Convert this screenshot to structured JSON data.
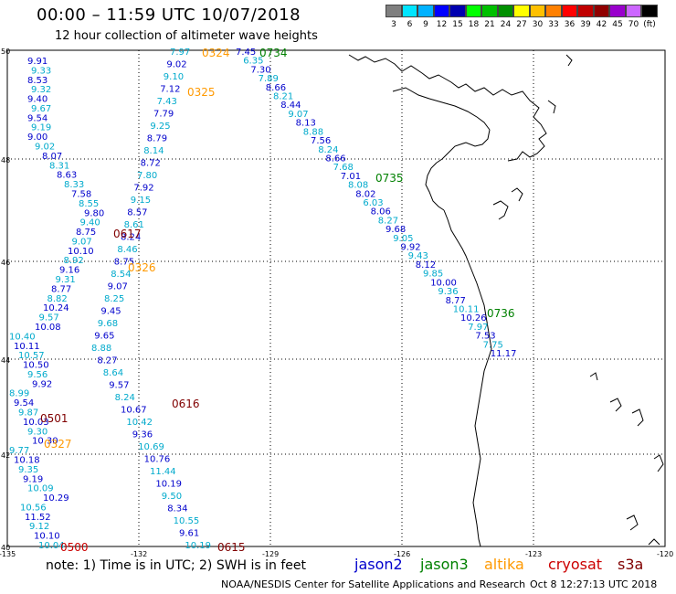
{
  "title": "00:00 – 11:59 UTC 10/07/2018",
  "subtitle": "12 hour collection of altimeter wave heights",
  "scale": {
    "colors": [
      "#7f7f7f",
      "#00e5ff",
      "#00b2ff",
      "#0000ff",
      "#0000b0",
      "#00ff00",
      "#00c000",
      "#009000",
      "#ffff00",
      "#ffc000",
      "#ff8000",
      "#ff0000",
      "#c00000",
      "#900000",
      "#9900cc",
      "#cc66ff",
      "#000000"
    ],
    "labels": [
      "3",
      "6",
      "9",
      "12",
      "15",
      "18",
      "21",
      "24",
      "27",
      "30",
      "33",
      "36",
      "39",
      "42",
      "45",
      "70",
      "(ft)"
    ]
  },
  "axes": {
    "lat_labels": [
      "50",
      "48",
      "46",
      "44",
      "42",
      "40"
    ],
    "lon_labels": [
      "-135",
      "-132",
      "-129",
      "-126",
      "-123",
      "-120"
    ]
  },
  "colors": {
    "jason2": "#0000cc",
    "jason3": "#008000",
    "altika": "#ff9900",
    "cryosat": "#cc0000",
    "s3a": "#800000",
    "altika_val": "#00aacc"
  },
  "passes": [
    {
      "label": "0324",
      "color": "#ff9900"
    },
    {
      "label": "0734",
      "color": "#008000"
    },
    {
      "label": "0325",
      "color": "#ff9900"
    },
    {
      "label": "0735",
      "color": "#008000"
    },
    {
      "label": "0617",
      "color": "#800000"
    },
    {
      "label": "0326",
      "color": "#ff9900"
    },
    {
      "label": "0736",
      "color": "#008000"
    },
    {
      "label": "0616",
      "color": "#800000"
    },
    {
      "label": "0501",
      "color": "#800000"
    },
    {
      "label": "0327",
      "color": "#ff9900"
    },
    {
      "label": "0500",
      "color": "#cc0000"
    },
    {
      "label": "0615",
      "color": "#800000"
    }
  ],
  "values": {
    "col1": [
      "9.91",
      "9.33",
      "8.53",
      "9.32",
      "9.40",
      "9.67",
      "9.54",
      "9.19",
      "9.00",
      "9.02",
      "8.07",
      "8.31",
      "8.63",
      "8.33",
      "7.58",
      "8.55",
      "9.80",
      "9.40",
      "8.75",
      "9.07",
      "10.10",
      "8.92",
      "9.16",
      "9.31",
      "8.77",
      "8.82",
      "10.24",
      "9.57",
      "10.08",
      "10.40",
      "10.11",
      "10.57",
      "10.50",
      "9.56",
      "9.92",
      "8.99",
      "9.54",
      "9.87",
      "10.03",
      "9.30",
      "10.30",
      "9.77",
      "10.18",
      "9.35",
      "9.19",
      "10.09",
      "10.29",
      "10.56",
      "11.52",
      "9.12",
      "10.10",
      "10.04"
    ],
    "col2": [
      "7.97",
      "9.02",
      "9.10",
      "7.12",
      "7.43",
      "7.79",
      "9.25",
      "8.79",
      "8.14",
      "8.72",
      "7.80",
      "7.92",
      "9.15",
      "8.57",
      "8.61",
      "8.24",
      "8.46",
      "8.75",
      "8.54",
      "9.07",
      "8.25",
      "9.45",
      "9.68",
      "9.65",
      "8.88",
      "8.27",
      "8.64",
      "9.57",
      "8.24",
      "10.67",
      "10.42",
      "9.36",
      "10.69",
      "10.76",
      "11.44",
      "10.19",
      "9.50",
      "8.34",
      "10.55",
      "9.61",
      "10.19"
    ],
    "col3": [
      "7.45",
      "6.35",
      "7.30",
      "7.89",
      "8.66",
      "8.21",
      "8.44",
      "9.07",
      "8.13",
      "8.88",
      "7.56",
      "8.24",
      "8.66",
      "7.68",
      "7.01",
      "8.08",
      "8.02",
      "6.03",
      "8.06",
      "8.27",
      "9.68",
      "9.05",
      "9.92",
      "9.43",
      "8.12",
      "9.85",
      "10.00",
      "9.36",
      "8.77",
      "10.11",
      "10.26",
      "7.97",
      "7.53",
      "7.75",
      "11.17"
    ]
  },
  "note": "note: 1) Time is in UTC; 2) SWH is in feet",
  "legend": [
    "jason2",
    "jason3",
    "altika",
    "cryosat",
    "s3a"
  ],
  "footer_left": "NOAA/NESDIS Center for Satellite Applications and Research",
  "footer_right": "Oct  8 12:27:13 UTC 2018"
}
